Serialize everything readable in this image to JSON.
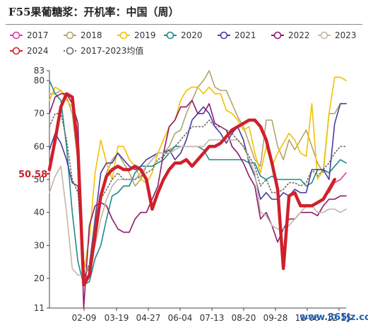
{
  "title": "F55果葡糖浆：开机率：中国（周）",
  "watermark": "www.365jz.com",
  "chart_data": {
    "type": "line",
    "title": "F55果葡糖浆：开机率：中国（周）",
    "xlabel": "",
    "ylabel": "",
    "ylim": [
      11,
      83
    ],
    "yticks": [
      11,
      20,
      30,
      40,
      50,
      60,
      70,
      80,
      83
    ],
    "xticks": [
      "02-09",
      "03-19",
      "04-27",
      "06-04",
      "07-13",
      "08-20",
      "09-28",
      "11-06",
      "12-15"
    ],
    "current_value_label": "50.58",
    "grid": false,
    "legend": "top",
    "x_days": [
      1,
      8,
      15,
      22,
      29,
      36,
      43,
      50,
      57,
      64,
      71,
      78,
      85,
      92,
      99,
      106,
      113,
      120,
      127,
      134,
      141,
      148,
      155,
      162,
      169,
      176,
      183,
      190,
      197,
      204,
      211,
      218,
      225,
      232,
      239,
      246,
      253,
      260,
      267,
      274,
      281,
      288,
      295,
      302,
      309,
      316,
      323,
      330,
      337,
      344,
      351,
      358,
      365
    ],
    "series": [
      {
        "name": "2017",
        "color": "#e8399a",
        "values": [
          null,
          null,
          null,
          null,
          null,
          null,
          null,
          null,
          null,
          null,
          null,
          null,
          null,
          null,
          null,
          null,
          null,
          null,
          null,
          null,
          null,
          null,
          null,
          null,
          null,
          null,
          null,
          null,
          null,
          null,
          null,
          null,
          null,
          null,
          null,
          null,
          null,
          null,
          null,
          null,
          null,
          null,
          null,
          null,
          null,
          null,
          null,
          null,
          null,
          46,
          49,
          50,
          52
        ]
      },
      {
        "name": "2018",
        "color": "#b5a36c",
        "values": [
          76,
          76,
          77,
          75,
          70,
          55,
          25,
          22,
          38,
          45,
          52,
          56,
          58,
          55,
          52,
          48,
          50,
          54,
          56,
          58,
          58,
          60,
          64,
          65,
          70,
          74,
          78,
          80,
          83,
          78,
          77,
          77,
          73,
          69,
          66,
          61,
          56,
          54,
          68,
          68,
          60,
          56,
          62,
          59,
          62,
          65,
          60,
          55,
          52,
          70,
          70,
          73,
          73
        ]
      },
      {
        "name": "2019",
        "color": "#f2c200",
        "values": [
          74,
          78,
          77,
          74,
          72,
          65,
          22,
          32,
          52,
          62,
          55,
          50,
          60,
          60,
          56,
          54,
          50,
          49,
          52,
          58,
          62,
          66,
          68,
          74,
          77,
          78,
          78,
          76,
          78,
          76,
          76,
          71,
          70,
          68,
          65,
          66,
          58,
          52,
          60,
          54,
          58,
          61,
          64,
          62,
          58,
          57,
          73,
          50,
          53,
          70,
          81,
          81,
          80
        ]
      },
      {
        "name": "2020",
        "color": "#1f8a8a",
        "values": [
          80,
          76,
          74,
          60,
          40,
          25,
          18,
          19,
          26,
          30,
          38,
          45,
          46,
          48,
          48,
          52,
          54,
          54,
          54,
          55,
          56,
          58,
          60,
          60,
          60,
          60,
          60,
          59,
          56,
          56,
          56,
          56,
          56,
          56,
          56,
          55,
          55,
          51,
          50,
          51,
          50,
          50,
          50,
          50,
          50,
          48,
          49,
          53,
          53,
          52,
          54,
          56,
          55
        ]
      },
      {
        "name": "2021",
        "color": "#4c3c9a",
        "values": [
          59,
          64,
          61,
          56,
          49,
          48,
          20,
          24,
          38,
          52,
          55,
          55,
          58,
          56,
          54,
          53,
          54,
          56,
          57,
          58,
          58,
          59,
          56,
          58,
          62,
          68,
          70,
          72,
          70,
          66,
          64,
          61,
          64,
          66,
          62,
          55,
          51,
          44,
          46,
          44,
          44,
          46,
          45,
          47,
          46,
          46,
          53,
          53,
          53,
          50,
          67,
          73,
          73
        ]
      },
      {
        "name": "2022",
        "color": "#8c1a6a",
        "values": [
          70,
          75,
          76,
          76,
          73,
          67,
          11,
          36,
          42,
          43,
          42,
          38,
          35,
          34,
          34,
          38,
          40,
          40,
          44,
          48,
          58,
          66,
          68,
          72,
          72,
          74,
          70,
          70,
          73,
          67,
          66,
          65,
          60,
          58,
          55,
          51,
          48,
          38,
          40,
          36,
          31,
          35,
          38,
          38,
          40,
          40,
          40,
          39,
          42,
          44,
          44,
          45,
          45
        ]
      },
      {
        "name": "2023",
        "color": "#c4b6a8",
        "values": [
          46,
          51,
          54,
          40,
          23,
          21,
          21,
          24,
          30,
          38,
          44,
          48,
          50,
          50,
          50,
          50,
          52,
          54,
          56,
          58,
          58,
          58,
          59,
          60,
          60,
          60,
          60,
          60,
          62,
          62,
          62,
          62,
          62,
          62,
          60,
          56,
          52,
          40,
          39,
          36,
          35,
          35,
          36,
          38,
          40,
          42,
          42,
          40,
          40,
          41,
          41,
          40,
          41
        ]
      },
      {
        "name": "2024",
        "color": "#d0202a",
        "bold": true,
        "values": [
          53,
          62,
          72,
          76,
          75,
          59,
          18,
          21,
          33,
          45,
          51,
          53,
          54,
          53,
          53,
          54,
          53,
          50,
          41,
          46,
          50,
          53,
          55,
          55,
          56,
          54,
          56,
          58,
          60,
          60,
          61,
          63,
          65,
          66,
          67,
          68,
          68,
          66,
          62,
          55,
          47,
          23,
          45,
          46,
          42,
          42,
          42,
          43,
          44,
          47,
          50
        ]
      },
      {
        "name": "2017-2023均值",
        "color": "#6a6a6a",
        "dotted": true,
        "values": [
          66,
          70,
          70,
          62,
          50,
          46,
          22,
          24,
          37,
          44,
          47,
          50,
          52,
          50,
          50,
          50,
          51,
          52,
          53,
          56,
          57,
          59,
          60,
          62,
          64,
          66,
          66,
          66,
          68,
          66,
          66,
          65,
          64,
          62,
          60,
          57,
          54,
          48,
          50,
          46,
          46,
          47,
          49,
          49,
          48,
          49,
          53,
          51,
          53,
          55,
          58,
          60,
          60
        ]
      }
    ]
  }
}
